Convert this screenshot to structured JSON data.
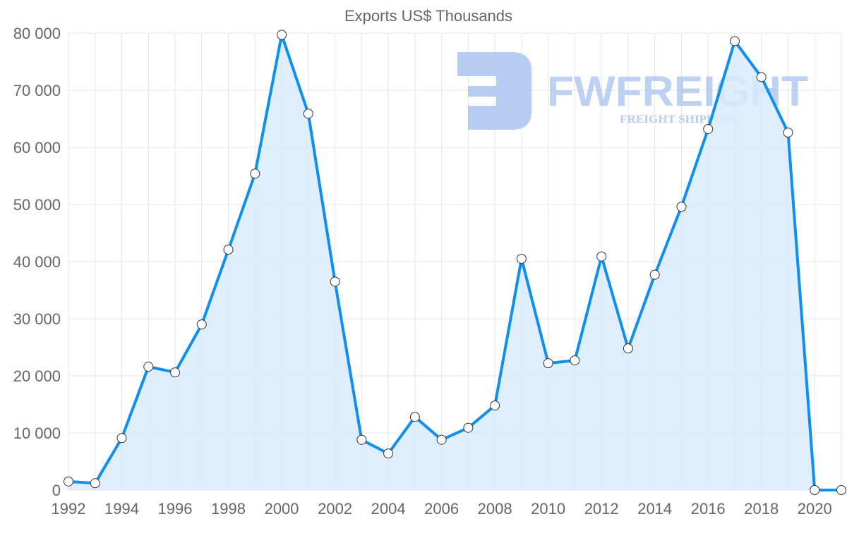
{
  "chart_data": {
    "type": "area",
    "title": "Exports US$ Thousands",
    "xlabel": "",
    "ylabel": "",
    "x": [
      1992,
      1993,
      1994,
      1995,
      1996,
      1997,
      1998,
      1999,
      2000,
      2001,
      2002,
      2003,
      2004,
      2005,
      2006,
      2007,
      2008,
      2009,
      2010,
      2011,
      2012,
      2013,
      2014,
      2015,
      2016,
      2017,
      2018,
      2019,
      2020,
      2021
    ],
    "series": [
      {
        "name": "Exports US$ Thousands",
        "values": [
          1500,
          1200,
          9100,
          21600,
          20600,
          29000,
          42100,
          55400,
          79700,
          65900,
          36500,
          8800,
          6400,
          12800,
          8800,
          10900,
          14800,
          40500,
          22200,
          22700,
          40900,
          24800,
          37700,
          49600,
          63200,
          78600,
          72300,
          62600,
          0,
          0
        ]
      }
    ],
    "ylim": [
      0,
      80000
    ],
    "xlim": [
      1992,
      2021
    ],
    "yticks": [
      "0",
      "10 000",
      "20 000",
      "30 000",
      "40 000",
      "50 000",
      "60 000",
      "70 000",
      "80 000"
    ],
    "xticks": [
      "1992",
      "1994",
      "1996",
      "1998",
      "2000",
      "2002",
      "2004",
      "2006",
      "2008",
      "2010",
      "2012",
      "2014",
      "2016",
      "2018",
      "2020"
    ],
    "grid": true,
    "colors": {
      "line": "#0f8ff0",
      "fill": "#d9ebfb",
      "point": "#ffffff"
    }
  },
  "watermark": {
    "brand": "FWFREIGHT",
    "tagline": "FREIGHT SHIPPING"
  }
}
